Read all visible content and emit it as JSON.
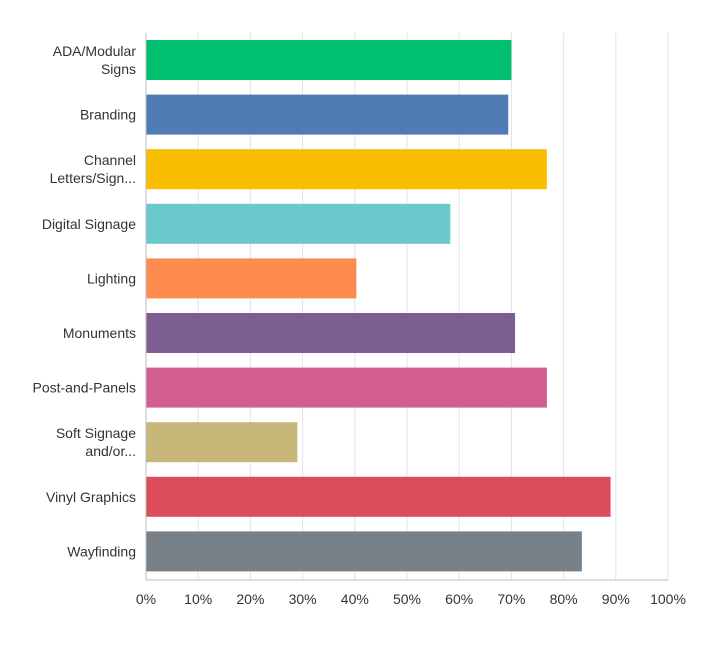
{
  "chart_data": {
    "type": "bar",
    "orientation": "horizontal",
    "title": "",
    "xlabel": "",
    "ylabel": "",
    "xlim": [
      0,
      100
    ],
    "ticks": [
      "0%",
      "10%",
      "20%",
      "30%",
      "40%",
      "50%",
      "60%",
      "70%",
      "80%",
      "90%",
      "100%"
    ],
    "grid": true,
    "legend": "none",
    "categories": [
      {
        "label_lines": [
          "ADA/Modular",
          "Signs"
        ],
        "value": 70,
        "color": "#00bf6f"
      },
      {
        "label_lines": [
          "Branding"
        ],
        "value": 69.4,
        "color": "#507cb6"
      },
      {
        "label_lines": [
          "Channel",
          "Letters/Sign..."
        ],
        "value": 76.8,
        "color": "#f9be00"
      },
      {
        "label_lines": [
          "Digital Signage"
        ],
        "value": 58.3,
        "color": "#6bc8cd"
      },
      {
        "label_lines": [
          "Lighting"
        ],
        "value": 40.3,
        "color": "#ff8b4f"
      },
      {
        "label_lines": [
          "Monuments"
        ],
        "value": 70.7,
        "color": "#7d5e90"
      },
      {
        "label_lines": [
          "Post-and-Panels"
        ],
        "value": 76.8,
        "color": "#d25f90"
      },
      {
        "label_lines": [
          "Soft Signage",
          "and/or..."
        ],
        "value": 29,
        "color": "#c7b879"
      },
      {
        "label_lines": [
          "Vinyl Graphics"
        ],
        "value": 89,
        "color": "#dc4d5c"
      },
      {
        "label_lines": [
          "Wayfinding"
        ],
        "value": 83.5,
        "color": "#768086"
      }
    ]
  }
}
